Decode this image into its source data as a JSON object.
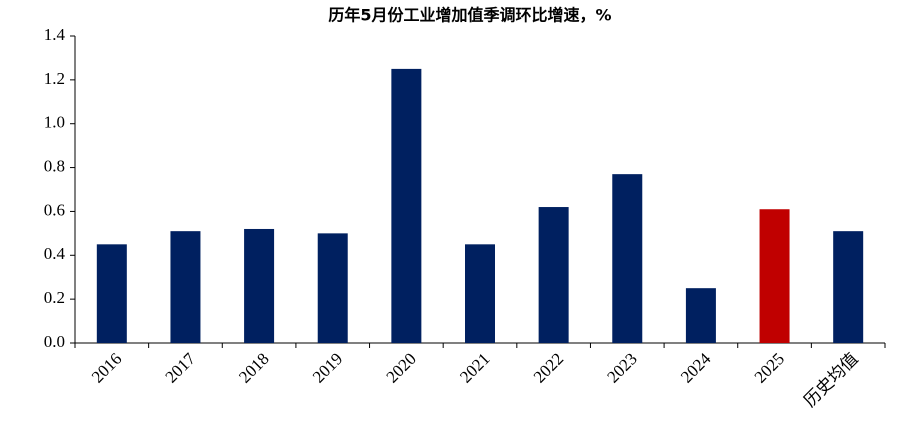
{
  "chart_data": {
    "type": "bar",
    "title": "历年5月份工业增加值季调环比增速，%",
    "categories": [
      "2016",
      "2017",
      "2018",
      "2019",
      "2020",
      "2021",
      "2022",
      "2023",
      "2024",
      "2025",
      "历史均值"
    ],
    "values": [
      0.45,
      0.51,
      0.52,
      0.5,
      1.25,
      0.45,
      0.62,
      0.77,
      0.25,
      0.61,
      0.51
    ],
    "colors": [
      "#002060",
      "#002060",
      "#002060",
      "#002060",
      "#002060",
      "#002060",
      "#002060",
      "#002060",
      "#002060",
      "#c00000",
      "#002060"
    ],
    "ylim": [
      0,
      1.4
    ],
    "yticks": [
      {
        "value": 0,
        "label": "0.0"
      },
      0.2,
      0.4,
      0.6,
      0.8,
      {
        "value": 1,
        "label": "1.0"
      },
      1.2,
      1.4
    ],
    "grid": false
  }
}
